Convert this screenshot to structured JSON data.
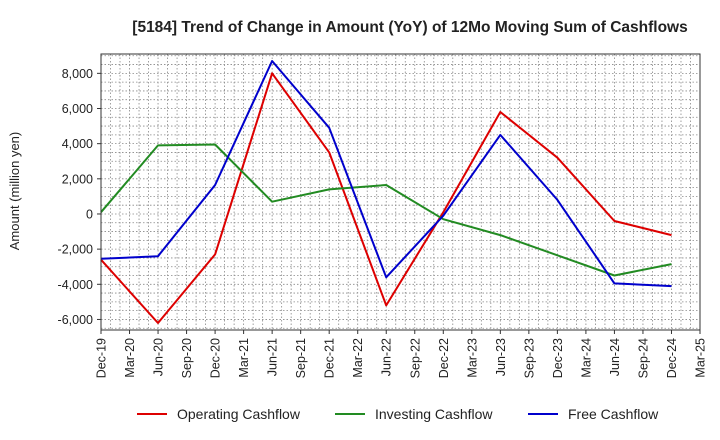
{
  "chart_data": {
    "type": "line",
    "title": "[5184]  Trend of Change in Amount (YoY) of 12Mo Moving Sum of Cashflows",
    "xlabel": "",
    "ylabel": "Amount (million yen)",
    "ylim": [
      -6600,
      9100
    ],
    "yticks": [
      -6000,
      -4000,
      -2000,
      0,
      2000,
      4000,
      6000,
      8000
    ],
    "ytick_labels": [
      "-6,000",
      "-4,000",
      "-2,000",
      "0",
      "2,000",
      "4,000",
      "6,000",
      "8,000"
    ],
    "categories": [
      "Dec-19",
      "Mar-20",
      "Jun-20",
      "Sep-20",
      "Dec-20",
      "Mar-21",
      "Jun-21",
      "Sep-21",
      "Dec-21",
      "Mar-22",
      "Jun-22",
      "Sep-22",
      "Dec-22",
      "Mar-23",
      "Jun-23",
      "Sep-23",
      "Dec-23",
      "Mar-24",
      "Jun-24",
      "Sep-24",
      "Dec-24",
      "Mar-25"
    ],
    "grid": true,
    "legend_position": "bottom",
    "series": [
      {
        "name": "Operating Cashflow",
        "color": "#dd0000",
        "values": [
          -2600,
          null,
          -6200,
          null,
          -2300,
          null,
          8000,
          null,
          3500,
          null,
          -5200,
          null,
          100,
          null,
          5800,
          null,
          3200,
          null,
          -400,
          null,
          -1200,
          null
        ]
      },
      {
        "name": "Investing Cashflow",
        "color": "#228B22",
        "values": [
          100,
          null,
          3900,
          null,
          3950,
          null,
          700,
          null,
          1400,
          null,
          1650,
          null,
          -300,
          null,
          -1200,
          null,
          -2350,
          null,
          -3500,
          null,
          -2850,
          null
        ]
      },
      {
        "name": "Free Cashflow",
        "color": "#0000cc",
        "values": [
          -2550,
          null,
          -2400,
          null,
          1650,
          null,
          8700,
          null,
          4900,
          null,
          -3600,
          null,
          -100,
          null,
          4500,
          null,
          800,
          null,
          -3950,
          null,
          -4100,
          null
        ]
      }
    ]
  }
}
